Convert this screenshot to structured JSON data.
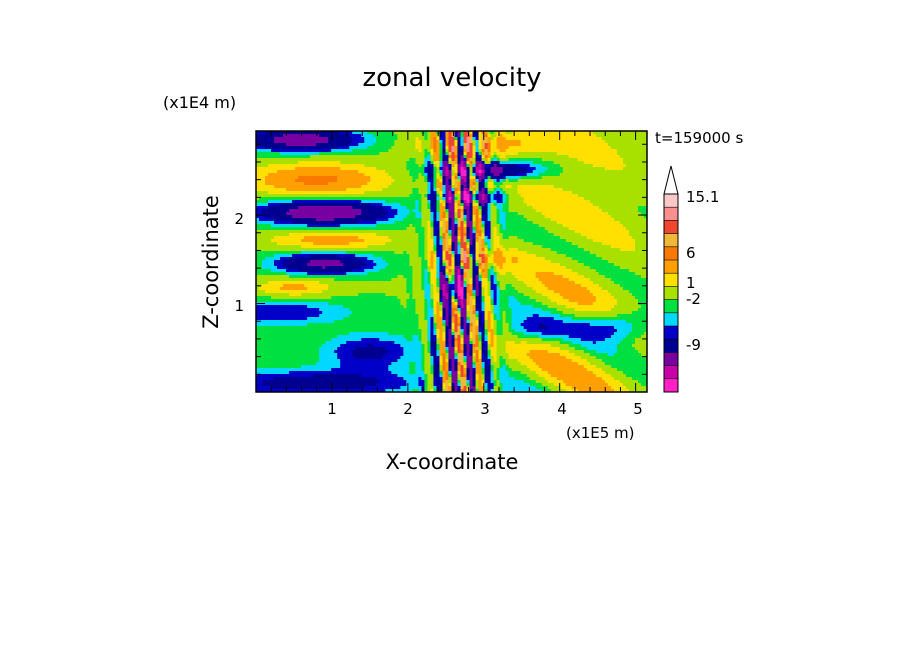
{
  "chart_data": {
    "type": "heatmap",
    "title": "zonal velocity",
    "xlabel": "X-coordinate",
    "ylabel": "Z-coordinate",
    "x_unit": "(x1E5 m)",
    "y_unit": "(x1E4 m)",
    "time_label": "t=159000 s",
    "xlim": [
      0,
      5.15
    ],
    "ylim": [
      0,
      2.95
    ],
    "x_ticks": [
      "1",
      "2",
      "3",
      "4",
      "5"
    ],
    "y_ticks": [
      "1",
      "2"
    ],
    "colorbar": {
      "labels": [
        "15.1",
        "6",
        "1",
        "-2",
        "-9"
      ],
      "colors": [
        "#fbc8c8",
        "#f89090",
        "#f04830",
        "#f0b838",
        "#f87800",
        "#ffa000",
        "#ffe000",
        "#a8e000",
        "#00e040",
        "#00d8ff",
        "#0000c8",
        "#000090",
        "#7800a0",
        "#c800a8",
        "#ff20c8"
      ]
    },
    "field_summary": "banded field, blue/red layers on left, mixed band near x=2.4-3.0, yellow/orange on right"
  }
}
